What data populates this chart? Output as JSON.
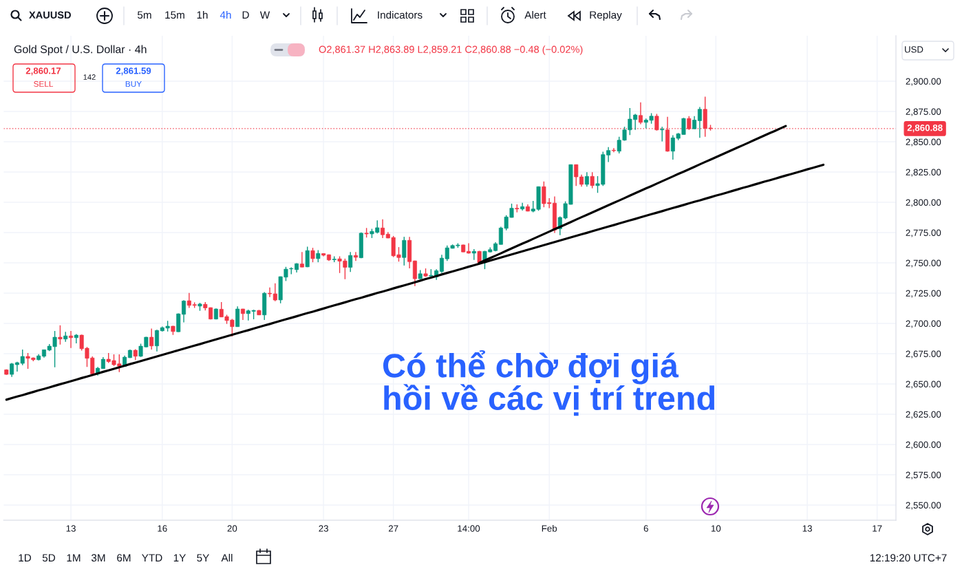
{
  "chart_data": {
    "type": "candlestick",
    "title": "Gold Spot / U.S. Dollar · 4h",
    "subtitle": "O2,861.37 H2,863.89 L2,859.21 C2,860.88 −0.48 (−0.02%)",
    "categories": [
      null,
      null,
      null,
      null,
      null,
      null,
      null,
      null,
      null,
      null,
      null,
      null,
      "13",
      null,
      null,
      null,
      null,
      null,
      null,
      null,
      null,
      null,
      null,
      null,
      null,
      null,
      null,
      null,
      null,
      "16",
      null,
      null,
      null,
      null,
      null,
      null,
      null,
      null,
      null,
      null,
      null,
      null,
      "20",
      null,
      null,
      null,
      null,
      null,
      null,
      null,
      null,
      null,
      null,
      null,
      null,
      null,
      null,
      null,
      null,
      "23",
      null,
      null,
      null,
      null,
      null,
      null,
      null,
      null,
      null,
      null,
      null,
      null,
      "27",
      null,
      null,
      null,
      null,
      null,
      null,
      null,
      null,
      null,
      null,
      null,
      null,
      null,
      "14:00",
      null,
      null,
      null,
      null,
      null,
      null,
      null,
      null,
      null,
      null,
      null,
      null,
      null,
      null,
      "Feb",
      null,
      null,
      null,
      null,
      null,
      null,
      null,
      null,
      null,
      null,
      null,
      null,
      null,
      null,
      null,
      null,
      null,
      "6",
      null,
      null,
      null,
      null,
      null,
      null,
      null,
      null,
      null,
      null,
      null,
      null,
      "10",
      null,
      null,
      null,
      null,
      null,
      null,
      null,
      null,
      null,
      null,
      null,
      null,
      null,
      null,
      null,
      null,
      "13",
      null,
      null,
      null,
      null,
      null,
      null,
      null,
      null,
      null,
      null,
      null,
      null,
      "17",
      null,
      null,
      null
    ],
    "ohlc": [
      [
        2661.7,
        2662.1,
        2657.5,
        2657.9
      ],
      [
        2657.9,
        2667.4,
        2655.8,
        2666.6
      ],
      [
        2665.9,
        2668.3,
        2660.2,
        2667.6
      ],
      [
        2667.0,
        2678.4,
        2665.5,
        2672.7
      ],
      [
        2672.7,
        2675.5,
        2662.5,
        2671.2
      ],
      [
        2671.5,
        2671.9,
        2668.7,
        2670.0
      ],
      [
        2670.0,
        2674.6,
        2669.5,
        2673.2
      ],
      [
        2672.9,
        2678.4,
        2671.7,
        2678.2
      ],
      [
        2678.0,
        2682.9,
        2677.2,
        2681.2
      ],
      [
        2680.8,
        2693.7,
        2663.8,
        2688.6
      ],
      [
        2688.6,
        2698.4,
        2682.5,
        2687.1
      ],
      [
        2687.1,
        2693.1,
        2684.8,
        2689.7
      ],
      [
        2689.7,
        2693.7,
        2679.7,
        2688.2
      ],
      [
        2688.2,
        2691.2,
        2683.5,
        2690.3
      ],
      [
        2690.3,
        2690.7,
        2677.6,
        2679.1
      ],
      [
        2679.5,
        2680.6,
        2664.0,
        2671.2
      ],
      [
        2671.5,
        2672.7,
        2657.7,
        2658.3
      ],
      [
        2658.3,
        2664.0,
        2657.0,
        2663.0
      ],
      [
        2662.7,
        2672.1,
        2662.5,
        2670.4
      ],
      [
        2670.4,
        2675.5,
        2667.4,
        2668.5
      ],
      [
        2669.3,
        2674.4,
        2664.9,
        2665.9
      ],
      [
        2666.6,
        2674.4,
        2659.8,
        2664.7
      ],
      [
        2664.5,
        2673.4,
        2664.3,
        2672.1
      ],
      [
        2671.7,
        2678.4,
        2671.5,
        2677.8
      ],
      [
        2677.8,
        2678.7,
        2669.7,
        2672.9
      ],
      [
        2672.9,
        2683.3,
        2672.3,
        2681.2
      ],
      [
        2680.6,
        2688.9,
        2680.2,
        2688.6
      ],
      [
        2688.6,
        2695.8,
        2678.4,
        2681.4
      ],
      [
        2681.4,
        2694.8,
        2676.9,
        2694.2
      ],
      [
        2693.9,
        2697.5,
        2693.3,
        2696.5
      ],
      [
        2696.1,
        2702.2,
        2693.3,
        2697.7
      ],
      [
        2697.7,
        2698.0,
        2690.5,
        2693.3
      ],
      [
        2693.1,
        2708.2,
        2692.9,
        2707.9
      ],
      [
        2707.5,
        2719.2,
        2700.9,
        2718.5
      ],
      [
        2718.7,
        2725.1,
        2712.8,
        2714.9
      ],
      [
        2715.5,
        2717.4,
        2712.8,
        2714.9
      ],
      [
        2714.3,
        2717.0,
        2710.4,
        2716.0
      ],
      [
        2715.8,
        2717.6,
        2710.7,
        2712.8
      ],
      [
        2713.0,
        2713.2,
        2703.2,
        2703.6
      ],
      [
        2703.6,
        2712.3,
        2703.2,
        2711.9
      ],
      [
        2711.7,
        2717.6,
        2705.1,
        2705.3
      ],
      [
        2705.6,
        2707.1,
        2699.6,
        2702.4
      ],
      [
        2702.8,
        2703.7,
        2689.2,
        2697.3
      ],
      [
        2697.3,
        2714.1,
        2697.1,
        2711.9
      ],
      [
        2711.9,
        2712.1,
        2702.8,
        2708.1
      ],
      [
        2708.1,
        2711.3,
        2702.4,
        2710.4
      ],
      [
        2710.0,
        2711.3,
        2703.4,
        2710.7
      ],
      [
        2710.7,
        2711.1,
        2706.8,
        2707.0
      ],
      [
        2707.0,
        2725.9,
        2702.8,
        2724.9
      ],
      [
        2724.9,
        2729.7,
        2721.7,
        2724.4
      ],
      [
        2724.4,
        2733.1,
        2718.3,
        2719.3
      ],
      [
        2719.4,
        2738.8,
        2716.6,
        2738.6
      ],
      [
        2738.2,
        2746.7,
        2735.0,
        2744.8
      ],
      [
        2745.0,
        2746.3,
        2740.6,
        2745.4
      ],
      [
        2744.4,
        2749.7,
        2742.1,
        2749.3
      ],
      [
        2749.1,
        2759.0,
        2746.3,
        2746.5
      ],
      [
        2746.7,
        2763.3,
        2746.5,
        2760.1
      ],
      [
        2760.1,
        2762.4,
        2750.5,
        2753.5
      ],
      [
        2753.5,
        2760.5,
        2750.5,
        2757.8
      ],
      [
        2757.7,
        2757.9,
        2755.4,
        2756.3
      ],
      [
        2756.7,
        2756.9,
        2751.6,
        2752.4
      ],
      [
        2752.6,
        2755.4,
        2750.5,
        2753.1
      ],
      [
        2753.3,
        2755.4,
        2741.6,
        2751.4
      ],
      [
        2751.6,
        2753.5,
        2736.5,
        2746.3
      ],
      [
        2746.3,
        2759.0,
        2742.5,
        2756.1
      ],
      [
        2756.1,
        2759.0,
        2751.6,
        2754.6
      ],
      [
        2754.2,
        2775.2,
        2753.9,
        2774.5
      ],
      [
        2774.5,
        2778.8,
        2770.9,
        2773.9
      ],
      [
        2773.9,
        2778.1,
        2770.5,
        2776.0
      ],
      [
        2775.2,
        2785.1,
        2774.3,
        2779.0
      ],
      [
        2778.8,
        2786.0,
        2770.5,
        2773.2
      ],
      [
        2773.7,
        2775.4,
        2770.3,
        2770.5
      ],
      [
        2770.9,
        2772.2,
        2754.8,
        2755.8
      ],
      [
        2756.7,
        2763.0,
        2751.0,
        2754.4
      ],
      [
        2754.4,
        2771.5,
        2747.8,
        2768.6
      ],
      [
        2768.6,
        2771.5,
        2745.4,
        2751.0
      ],
      [
        2751.6,
        2751.8,
        2730.8,
        2736.9
      ],
      [
        2736.9,
        2744.0,
        2736.7,
        2741.0
      ],
      [
        2741.0,
        2745.4,
        2738.4,
        2739.1
      ],
      [
        2739.1,
        2744.8,
        2737.2,
        2739.7
      ],
      [
        2738.4,
        2744.8,
        2735.9,
        2743.5
      ],
      [
        2742.9,
        2756.7,
        2741.6,
        2753.9
      ],
      [
        2753.3,
        2764.3,
        2751.6,
        2762.4
      ],
      [
        2762.0,
        2765.2,
        2761.8,
        2764.3
      ],
      [
        2764.1,
        2766.2,
        2762.4,
        2764.7
      ],
      [
        2764.8,
        2765.0,
        2758.8,
        2759.0
      ],
      [
        2759.5,
        2766.2,
        2757.7,
        2758.0
      ],
      [
        2758.0,
        2761.4,
        2752.4,
        2759.5
      ],
      [
        2759.5,
        2759.9,
        2749.1,
        2750.1
      ],
      [
        2750.1,
        2759.9,
        2744.8,
        2759.5
      ],
      [
        2759.0,
        2762.8,
        2758.6,
        2760.9
      ],
      [
        2760.1,
        2767.1,
        2759.5,
        2765.8
      ],
      [
        2765.2,
        2779.8,
        2765.0,
        2778.8
      ],
      [
        2778.5,
        2789.4,
        2776.9,
        2787.9
      ],
      [
        2787.5,
        2798.9,
        2787.3,
        2795.1
      ],
      [
        2795.1,
        2798.3,
        2791.7,
        2794.5
      ],
      [
        2794.5,
        2799.6,
        2793.2,
        2796.4
      ],
      [
        2796.4,
        2798.3,
        2792.5,
        2792.7
      ],
      [
        2792.7,
        2801.2,
        2791.7,
        2794.5
      ],
      [
        2794.2,
        2813.1,
        2793.0,
        2812.9
      ],
      [
        2812.9,
        2817.2,
        2795.9,
        2798.9
      ],
      [
        2799.7,
        2803.4,
        2795.1,
        2798.9
      ],
      [
        2799.3,
        2804.9,
        2774.7,
        2777.1
      ],
      [
        2778.1,
        2788.3,
        2772.8,
        2787.5
      ],
      [
        2787.0,
        2800.8,
        2786.0,
        2798.9
      ],
      [
        2798.3,
        2831.3,
        2798.1,
        2831.1
      ],
      [
        2831.1,
        2831.3,
        2813.5,
        2821.0
      ],
      [
        2821.0,
        2822.9,
        2812.9,
        2814.8
      ],
      [
        2814.8,
        2824.8,
        2812.9,
        2821.4
      ],
      [
        2821.4,
        2824.8,
        2811.6,
        2813.8
      ],
      [
        2813.8,
        2821.6,
        2807.8,
        2815.4
      ],
      [
        2814.8,
        2841.8,
        2813.5,
        2839.4
      ],
      [
        2839.0,
        2845.6,
        2833.3,
        2842.8
      ],
      [
        2843.0,
        2844.7,
        2841.4,
        2842.6
      ],
      [
        2842.2,
        2854.1,
        2840.3,
        2851.3
      ],
      [
        2851.3,
        2862.3,
        2850.9,
        2859.8
      ],
      [
        2859.8,
        2877.8,
        2855.6,
        2868.7
      ],
      [
        2868.3,
        2873.0,
        2859.8,
        2872.1
      ],
      [
        2871.7,
        2882.5,
        2864.5,
        2866.0
      ],
      [
        2866.0,
        2869.2,
        2861.1,
        2867.9
      ],
      [
        2867.7,
        2873.6,
        2864.9,
        2871.1
      ],
      [
        2871.1,
        2873.0,
        2859.2,
        2859.8
      ],
      [
        2859.8,
        2862.3,
        2850.3,
        2860.4
      ],
      [
        2859.8,
        2870.6,
        2841.8,
        2842.2
      ],
      [
        2842.2,
        2855.4,
        2835.2,
        2853.2
      ],
      [
        2852.8,
        2857.3,
        2851.3,
        2856.6
      ],
      [
        2856.0,
        2869.8,
        2855.8,
        2869.2
      ],
      [
        2869.2,
        2871.1,
        2859.8,
        2860.7
      ],
      [
        2860.7,
        2871.1,
        2860.5,
        2867.9
      ],
      [
        2867.4,
        2878.7,
        2853.2,
        2876.8
      ],
      [
        2876.8,
        2887.2,
        2854.1,
        2861.1
      ],
      [
        2861.37,
        2863.89,
        2859.21,
        2860.88
      ],
      null,
      null,
      null,
      null,
      null,
      null,
      null,
      null,
      null,
      null,
      null,
      null,
      null,
      null,
      null,
      null,
      null,
      null,
      null,
      null,
      null,
      null,
      null,
      null,
      null,
      null,
      null,
      null,
      null,
      null,
      null,
      null,
      null,
      null
    ],
    "colors": [
      "#f23645",
      "#089981",
      "#089981",
      "#089981",
      "#f23645",
      "#f23645",
      "#089981",
      "#089981",
      "#089981",
      "#089981",
      "#f23645",
      "#089981",
      "#f23645",
      "#089981",
      "#f23645",
      "#f23645",
      "#f23645",
      "#089981",
      "#089981",
      "#f23645",
      "#f23645",
      "#f23645",
      "#089981",
      "#089981",
      "#f23645",
      "#089981",
      "#089981",
      "#f23645",
      "#089981",
      "#089981",
      "#089981",
      "#f23645",
      "#089981",
      "#089981",
      "#f23645",
      "#f23645",
      "#089981",
      "#f23645",
      "#f23645",
      "#089981",
      "#f23645",
      "#f23645",
      "#f23645",
      "#089981",
      "#f23645",
      "#089981",
      "#089981",
      "#f23645",
      "#089981",
      "#f23645",
      "#f23645",
      "#089981",
      "#089981",
      "#089981",
      "#089981",
      "#f23645",
      "#089981",
      "#f23645",
      "#089981",
      "#f23645",
      "#f23645",
      "#089981",
      "#f23645",
      "#f23645",
      "#089981",
      "#f23645",
      "#089981",
      "#f23645",
      "#089981",
      "#089981",
      "#f23645",
      "#f23645",
      "#f23645",
      "#f23645",
      "#089981",
      "#f23645",
      "#f23645",
      "#089981",
      "#f23645",
      "#089981",
      "#089981",
      "#089981",
      "#089981",
      "#089981",
      "#089981",
      "#f23645",
      "#f23645",
      "#089981",
      "#f23645",
      "#089981",
      "#089981",
      "#089981",
      "#089981",
      "#089981",
      "#089981",
      "#f23645",
      "#089981",
      "#f23645",
      "#089981",
      "#089981",
      "#f23645",
      "#f23645",
      "#f23645",
      "#089981",
      "#089981",
      "#089981",
      "#f23645",
      "#f23645",
      "#089981",
      "#f23645",
      "#089981",
      "#089981",
      "#089981",
      "#f23645",
      "#089981",
      "#089981",
      "#089981",
      "#089981",
      "#f23645",
      "#089981",
      "#089981",
      "#f23645",
      "#089981",
      "#f23645",
      "#089981",
      "#089981",
      "#089981",
      "#f23645",
      "#089981",
      "#089981",
      "#f23645",
      "#f23645",
      null,
      null,
      null,
      null,
      null,
      null,
      null,
      null,
      null,
      null,
      null,
      null,
      null,
      null,
      null,
      null,
      null,
      null,
      null,
      null,
      null,
      null,
      null,
      null,
      null,
      null,
      null,
      null,
      null,
      null,
      null,
      null,
      null,
      null
    ],
    "series": [
      {
        "type": "line",
        "color": "#000000",
        "values": [
          2637.0,
          2638.3,
          2639.6,
          2640.8,
          2642.1,
          2643.4,
          2644.7,
          2645.9,
          2647.2,
          2648.5,
          2649.8,
          2651.0,
          2652.3,
          2653.6,
          2654.9,
          2656.1,
          2657.4,
          2658.7,
          2660.0,
          2661.2,
          2662.5,
          2663.8,
          2665.1,
          2666.4,
          2667.6,
          2668.9,
          2670.2,
          2671.5,
          2672.7,
          2674.0,
          2675.3,
          2676.6,
          2677.8,
          2679.1,
          2680.4,
          2681.7,
          2682.9,
          2684.2,
          2685.5,
          2686.8,
          2688.1,
          2689.3,
          2690.6,
          2691.9,
          2693.2,
          2694.4,
          2695.7,
          2697.0,
          2698.3,
          2699.5,
          2700.8,
          2702.1,
          2703.4,
          2704.6,
          2705.9,
          2707.2,
          2708.5,
          2709.7,
          2711.0,
          2712.3,
          2713.6,
          2714.9,
          2716.1,
          2717.4,
          2718.7,
          2720.0,
          2721.2,
          2722.5,
          2723.8,
          2725.1,
          2726.3,
          2727.6,
          2728.9,
          2730.2,
          2731.4,
          2732.7,
          2734.0,
          2735.3,
          2736.6,
          2737.8,
          2739.1,
          2740.4,
          2741.7,
          2742.9,
          2744.2,
          2745.5,
          2746.8,
          2748.0,
          2749.3,
          2750.6,
          2751.9,
          2753.1,
          2754.4,
          2755.7,
          2757.0,
          2758.2,
          2759.5,
          2760.8,
          2762.1,
          2763.4,
          2764.6,
          2765.9,
          2767.2,
          2768.5,
          2769.7,
          2771.0,
          2772.3,
          2773.6,
          2774.8,
          2776.1,
          2777.4,
          2778.7,
          2780.0,
          2781.2,
          2782.5,
          2783.8,
          2785.1,
          2786.3,
          2787.6,
          2788.9,
          2790.2,
          2791.4,
          2792.7,
          2794.0,
          2795.3,
          2796.5,
          2797.8,
          2799.1,
          2800.4,
          2801.6,
          2802.9,
          2804.2,
          2805.5,
          2806.7,
          2808.0,
          2809.3,
          2810.6,
          2811.9,
          2813.1,
          2814.4,
          2815.7,
          2817.0,
          2818.2,
          2819.5,
          2820.8,
          2822.1,
          2823.3,
          2824.6,
          2825.9,
          2827.2,
          2828.4,
          2829.7,
          2831.0,
          null,
          null,
          null,
          null,
          null,
          null,
          null,
          null,
          null,
          null,
          null,
          null,
          null
        ]
      },
      {
        "type": "line",
        "color": "#000000",
        "values": [
          null,
          null,
          null,
          null,
          null,
          null,
          null,
          null,
          null,
          null,
          null,
          null,
          null,
          null,
          null,
          null,
          null,
          null,
          null,
          null,
          null,
          null,
          null,
          null,
          null,
          null,
          null,
          null,
          null,
          null,
          null,
          null,
          null,
          null,
          null,
          null,
          null,
          null,
          null,
          null,
          null,
          null,
          null,
          null,
          null,
          null,
          null,
          null,
          null,
          null,
          null,
          null,
          null,
          null,
          null,
          null,
          null,
          null,
          null,
          null,
          null,
          null,
          null,
          null,
          null,
          null,
          null,
          null,
          null,
          null,
          null,
          null,
          null,
          null,
          null,
          null,
          null,
          null,
          null,
          null,
          null,
          null,
          null,
          null,
          null,
          null,
          null,
          null,
          2750.0,
          2752.0,
          2754.0,
          2755.9,
          2757.9,
          2759.9,
          2761.9,
          2763.9,
          2765.9,
          2767.8,
          2769.8,
          2771.8,
          2773.8,
          2775.8,
          2777.8,
          2779.7,
          2781.7,
          2783.7,
          2785.7,
          2787.7,
          2789.6,
          2791.6,
          2793.6,
          2795.6,
          2797.6,
          2799.6,
          2801.5,
          2803.5,
          2805.5,
          2807.5,
          2809.5,
          2811.5,
          2813.4,
          2815.4,
          2817.4,
          2819.4,
          2821.4,
          2823.4,
          2825.3,
          2827.3,
          2829.3,
          2831.3,
          2833.3,
          2835.2,
          2837.2,
          2839.2,
          2841.2,
          2843.2,
          2845.2,
          2847.1,
          2849.1,
          2851.1,
          2853.1,
          2855.1,
          2857.1,
          2859.0,
          2861.0,
          2863.0,
          null,
          null,
          null,
          null,
          null,
          null,
          null,
          null,
          null,
          null,
          null,
          null,
          null,
          null,
          null,
          null,
          null,
          null,
          null,
          null
        ]
      }
    ],
    "ref_lines": [
      {
        "axis": "y",
        "value": 2860.88,
        "label": "2,860.88",
        "color": "#f23645",
        "line_style": "dotted"
      }
    ],
    "ylim": [
      2537.5,
      2937.5
    ],
    "yticks": [
      {
        "value": 2550,
        "label": "2,550.00"
      },
      {
        "value": 2575,
        "label": "2,575.00"
      },
      {
        "value": 2600,
        "label": "2,600.00"
      },
      {
        "value": 2625,
        "label": "2,625.00"
      },
      {
        "value": 2650,
        "label": "2,650.00"
      },
      {
        "value": 2675,
        "label": "2,675.00"
      },
      {
        "value": 2700,
        "label": "2,700.00"
      },
      {
        "value": 2725,
        "label": "2,725.00"
      },
      {
        "value": 2750,
        "label": "2,750.00"
      },
      {
        "value": 2775,
        "label": "2,775.00"
      },
      {
        "value": 2800,
        "label": "2,800.00"
      },
      {
        "value": 2825,
        "label": "2,825.00"
      },
      {
        "value": 2850,
        "label": "2,850.00"
      },
      {
        "value": 2875,
        "label": "2,875.00"
      },
      {
        "value": 2900,
        "label": "2,900.00"
      }
    ],
    "grid": true,
    "annotations": [
      "Có thể chờ đợi giá\nhồi về các vị trí trend",
      "XAUUSD",
      "5m",
      "15m",
      "1h",
      "4h",
      "D",
      "W",
      "Indicators",
      "Alert",
      "Replay",
      "2,860.17",
      "SELL",
      "142",
      "2,861.59",
      "BUY",
      "USD",
      "1D",
      "5D",
      "1M",
      "3M",
      "6M",
      "YTD",
      "1Y",
      "5Y",
      "All",
      "12:19:20 UTC+7"
    ]
  }
}
